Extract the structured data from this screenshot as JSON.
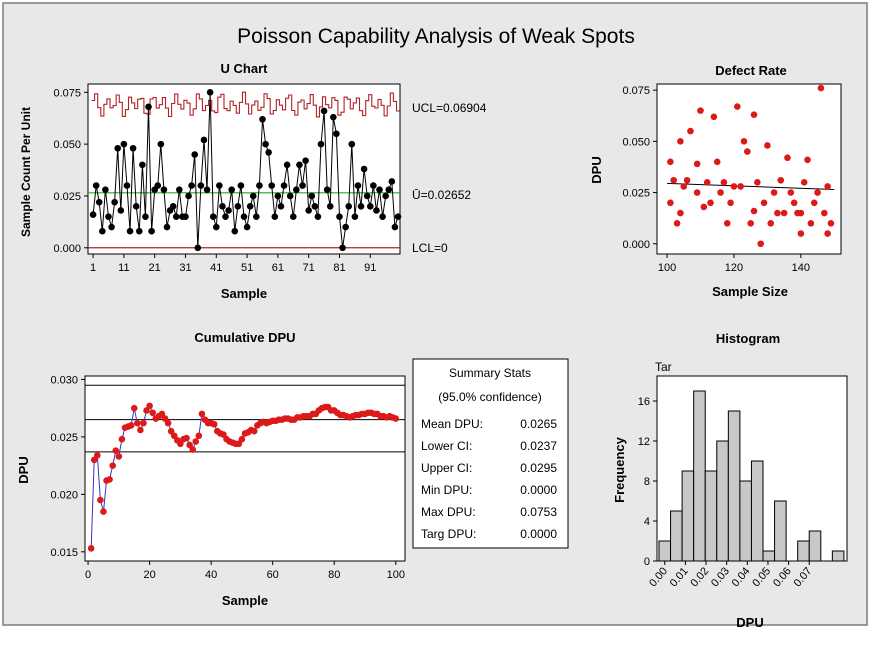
{
  "page": {
    "title": "Poisson Capability Analysis of Weak Spots",
    "colors": {
      "background": "#e8e8e8",
      "plot_bg": "#ffffff",
      "points": "#000000",
      "limits": "#b22222",
      "center": "#22aa22",
      "red_points": "#dd1a1a",
      "blue_line": "#3333cc",
      "bars": "#c8c8c8"
    }
  },
  "uchart": {
    "title": "U Chart",
    "ylabel": "Sample Count Per Unit",
    "xlabel": "Sample",
    "yticks": [
      "0.000",
      "0.025",
      "0.050",
      "0.075"
    ],
    "xticks": [
      "1",
      "11",
      "21",
      "31",
      "41",
      "51",
      "61",
      "71",
      "81",
      "91"
    ],
    "ucl_label": "UCL=0.06904",
    "center_label": "Ū=0.02652",
    "lcl_label": "LCL=0",
    "ucl": 0.06904,
    "center": 0.02652,
    "lcl": 0
  },
  "defect_rate": {
    "title": "Defect Rate",
    "ylabel": "DPU",
    "xlabel": "Sample Size",
    "yticks": [
      "0.000",
      "0.025",
      "0.050",
      "0.075"
    ],
    "xticks": [
      "100",
      "120",
      "140"
    ]
  },
  "cumulative": {
    "title": "Cumulative DPU",
    "ylabel": "DPU",
    "xlabel": "Sample",
    "yticks": [
      "0.015",
      "0.020",
      "0.025",
      "0.030"
    ],
    "xticks": [
      "0",
      "20",
      "40",
      "60",
      "80",
      "100"
    ]
  },
  "summary": {
    "title": "Summary Stats",
    "subtitle": "(95.0% confidence)",
    "rows": [
      {
        "label": "Mean DPU:",
        "value": "0.0265"
      },
      {
        "label": "Lower CI:",
        "value": "0.0237"
      },
      {
        "label": "Upper CI:",
        "value": "0.0295"
      },
      {
        "label": "Min DPU:",
        "value": "0.0000"
      },
      {
        "label": "Max DPU:",
        "value": "0.0753"
      },
      {
        "label": "Targ DPU:",
        "value": "0.0000"
      }
    ]
  },
  "histogram": {
    "title": "Histogram",
    "ylabel": "Frequency",
    "xlabel": "DPU",
    "tar_label": "Tar",
    "yticks": [
      "0",
      "4",
      "8",
      "12",
      "16"
    ],
    "xticks": [
      "0.00",
      "0.01",
      "0.02",
      "0.03",
      "0.04",
      "0.05",
      "0.06",
      "0.07"
    ]
  },
  "chart_data": [
    {
      "type": "line",
      "title": "U Chart",
      "xlabel": "Sample",
      "ylabel": "Sample Count Per Unit",
      "xlim": [
        0,
        100
      ],
      "ylim": [
        -0.003,
        0.079
      ],
      "x": [
        1,
        2,
        3,
        4,
        5,
        6,
        7,
        8,
        9,
        10,
        11,
        12,
        13,
        14,
        15,
        16,
        17,
        18,
        19,
        20,
        21,
        22,
        23,
        24,
        25,
        26,
        27,
        28,
        29,
        30,
        31,
        32,
        33,
        34,
        35,
        36,
        37,
        38,
        39,
        40,
        41,
        42,
        43,
        44,
        45,
        46,
        47,
        48,
        49,
        50,
        51,
        52,
        53,
        54,
        55,
        56,
        57,
        58,
        59,
        60,
        61,
        62,
        63,
        64,
        65,
        66,
        67,
        68,
        69,
        70,
        71,
        72,
        73,
        74,
        75,
        76,
        77,
        78,
        79,
        80,
        81,
        82,
        83,
        84,
        85,
        86,
        87,
        88,
        89,
        90,
        91,
        92,
        93,
        94,
        95,
        96,
        97,
        98,
        99,
        100
      ],
      "series": [
        {
          "values": [
            0.016,
            0.03,
            0.022,
            0.008,
            0.028,
            0.015,
            0.01,
            0.022,
            0.048,
            0.018,
            0.05,
            0.03,
            0.008,
            0.048,
            0.02,
            0.008,
            0.04,
            0.015,
            0.068,
            0.008,
            0.028,
            0.03,
            0.05,
            0.028,
            0.01,
            0.018,
            0.02,
            0.015,
            0.028,
            0.015,
            0.015,
            0.025,
            0.03,
            0.045,
            0.0,
            0.03,
            0.052,
            0.028,
            0.075,
            0.015,
            0.01,
            0.03,
            0.02,
            0.015,
            0.018,
            0.028,
            0.008,
            0.02,
            0.03,
            0.015,
            0.01,
            0.02,
            0.025,
            0.015,
            0.03,
            0.062,
            0.05,
            0.046,
            0.03,
            0.015,
            0.025,
            0.02,
            0.03,
            0.04,
            0.025,
            0.015,
            0.028,
            0.04,
            0.03,
            0.042,
            0.018,
            0.025,
            0.02,
            0.015,
            0.05,
            0.066,
            0.028,
            0.02,
            0.063,
            0.055,
            0.015,
            0.0,
            0.01,
            0.02,
            0.05,
            0.015,
            0.03,
            0.02,
            0.038,
            0.025,
            0.02,
            0.03,
            0.018,
            0.028,
            0.015,
            0.025,
            0.028,
            0.032,
            0.01,
            0.015
          ]
        }
      ],
      "ucl": 0.06904,
      "center": 0.02652,
      "lcl": 0
    },
    {
      "type": "scatter",
      "title": "Defect Rate",
      "xlabel": "Sample Size",
      "ylabel": "DPU",
      "xlim": [
        97,
        152
      ],
      "ylim": [
        -0.005,
        0.078
      ],
      "points": [
        [
          101,
          0.04
        ],
        [
          102,
          0.031
        ],
        [
          101,
          0.02
        ],
        [
          103,
          0.01
        ],
        [
          104,
          0.05
        ],
        [
          106,
          0.031
        ],
        [
          107,
          0.055
        ],
        [
          109,
          0.039
        ],
        [
          109,
          0.025
        ],
        [
          110,
          0.065
        ],
        [
          112,
          0.03
        ],
        [
          114,
          0.062
        ],
        [
          115,
          0.04
        ],
        [
          116,
          0.025
        ],
        [
          118,
          0.01
        ],
        [
          120,
          0.028
        ],
        [
          121,
          0.067
        ],
        [
          123,
          0.05
        ],
        [
          124,
          0.045
        ],
        [
          126,
          0.063
        ],
        [
          127,
          0.03
        ],
        [
          129,
          0.02
        ],
        [
          130,
          0.048
        ],
        [
          131,
          0.01
        ],
        [
          133,
          0.015
        ],
        [
          134,
          0.031
        ],
        [
          136,
          0.042
        ],
        [
          137,
          0.025
        ],
        [
          139,
          0.015
        ],
        [
          141,
          0.03
        ],
        [
          142,
          0.041
        ],
        [
          143,
          0.01
        ],
        [
          145,
          0.025
        ],
        [
          146,
          0.076
        ],
        [
          147,
          0.015
        ],
        [
          148,
          0.028
        ],
        [
          149,
          0.01
        ],
        [
          104,
          0.015
        ],
        [
          111,
          0.018
        ],
        [
          119,
          0.02
        ],
        [
          125,
          0.01
        ],
        [
          132,
          0.025
        ],
        [
          140,
          0.005
        ],
        [
          148,
          0.005
        ],
        [
          138,
          0.02
        ],
        [
          128,
          0.0
        ],
        [
          117,
          0.03
        ],
        [
          113,
          0.02
        ],
        [
          105,
          0.028
        ],
        [
          135,
          0.015
        ],
        [
          144,
          0.02
        ],
        [
          122,
          0.028
        ],
        [
          126,
          0.016
        ],
        [
          140,
          0.015
        ]
      ],
      "trend": {
        "x": [
          100,
          150
        ],
        "y": [
          0.0295,
          0.0265
        ]
      }
    },
    {
      "type": "line",
      "title": "Cumulative DPU",
      "xlabel": "Sample",
      "ylabel": "DPU",
      "xlim": [
        -1,
        103
      ],
      "ylim": [
        0.0142,
        0.0303
      ],
      "x": [
        1,
        2,
        3,
        4,
        5,
        6,
        7,
        8,
        9,
        10,
        11,
        12,
        13,
        14,
        15,
        16,
        17,
        18,
        19,
        20,
        21,
        22,
        23,
        24,
        25,
        26,
        27,
        28,
        29,
        30,
        31,
        32,
        33,
        34,
        35,
        36,
        37,
        38,
        39,
        40,
        41,
        42,
        43,
        44,
        45,
        46,
        47,
        48,
        49,
        50,
        51,
        52,
        53,
        54,
        55,
        56,
        57,
        58,
        59,
        60,
        61,
        62,
        63,
        64,
        65,
        66,
        67,
        68,
        69,
        70,
        71,
        72,
        73,
        74,
        75,
        76,
        77,
        78,
        79,
        80,
        81,
        82,
        83,
        84,
        85,
        86,
        87,
        88,
        89,
        90,
        91,
        92,
        93,
        94,
        95,
        96,
        97,
        98,
        99,
        100
      ],
      "series": [
        {
          "values": [
            0.0153,
            0.023,
            0.0234,
            0.0195,
            0.0185,
            0.0212,
            0.0213,
            0.0225,
            0.0238,
            0.0233,
            0.0248,
            0.0258,
            0.0259,
            0.026,
            0.0275,
            0.0262,
            0.0256,
            0.0262,
            0.0273,
            0.0277,
            0.0271,
            0.0266,
            0.0268,
            0.027,
            0.0266,
            0.0262,
            0.0255,
            0.0251,
            0.0247,
            0.0244,
            0.0248,
            0.0249,
            0.0243,
            0.0239,
            0.0246,
            0.0251,
            0.027,
            0.0265,
            0.0262,
            0.0262,
            0.0261,
            0.0255,
            0.0253,
            0.0252,
            0.0248,
            0.0246,
            0.0245,
            0.0244,
            0.0244,
            0.0248,
            0.0253,
            0.0254,
            0.0256,
            0.0255,
            0.026,
            0.0262,
            0.0263,
            0.0262,
            0.0263,
            0.0264,
            0.0264,
            0.0265,
            0.0265,
            0.0266,
            0.0266,
            0.0265,
            0.0265,
            0.0267,
            0.0267,
            0.0268,
            0.0268,
            0.0268,
            0.027,
            0.027,
            0.0273,
            0.0275,
            0.0276,
            0.0276,
            0.0273,
            0.0273,
            0.0271,
            0.0269,
            0.0269,
            0.0268,
            0.0267,
            0.0268,
            0.0269,
            0.0269,
            0.027,
            0.027,
            0.0271,
            0.0271,
            0.027,
            0.027,
            0.0268,
            0.0268,
            0.0267,
            0.0268,
            0.0267,
            0.0266
          ]
        }
      ],
      "reference_lines": [
        0.0237,
        0.0265,
        0.0295
      ]
    },
    {
      "type": "bar",
      "title": "Histogram",
      "xlabel": "DPU",
      "ylabel": "Frequency",
      "ylim": [
        0,
        18.5
      ],
      "bin_width": 0.0056,
      "bin_start": -0.0028,
      "values": [
        2,
        5,
        9,
        17,
        9,
        12,
        15,
        8,
        10,
        1,
        6,
        0,
        2,
        3,
        0,
        1
      ]
    }
  ]
}
